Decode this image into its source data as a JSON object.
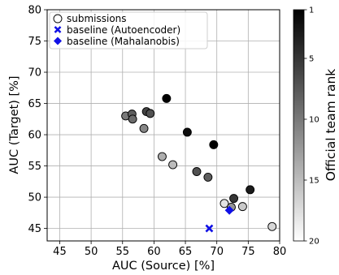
{
  "chart_data": {
    "type": "scatter",
    "xlabel": "AUC (Source) [%]",
    "ylabel": "AUC (Target) [%]",
    "xlim": [
      43,
      80
    ],
    "ylim": [
      43,
      80
    ],
    "xticks": [
      45,
      50,
      55,
      60,
      65,
      70,
      75,
      80
    ],
    "yticks": [
      45,
      50,
      55,
      60,
      65,
      70,
      75,
      80
    ],
    "grid": true,
    "legend_position": "top-left",
    "series": [
      {
        "name": "submissions",
        "marker": "circle",
        "points": [
          {
            "x": 55.5,
            "y": 63.0,
            "rank": 10
          },
          {
            "x": 56.5,
            "y": 63.3,
            "rank": 8
          },
          {
            "x": 56.6,
            "y": 62.5,
            "rank": 9
          },
          {
            "x": 58.4,
            "y": 61.0,
            "rank": 11
          },
          {
            "x": 58.8,
            "y": 63.7,
            "rank": 6
          },
          {
            "x": 59.4,
            "y": 63.4,
            "rank": 7
          },
          {
            "x": 62.0,
            "y": 65.8,
            "rank": 1
          },
          {
            "x": 61.3,
            "y": 56.5,
            "rank": 14
          },
          {
            "x": 63.0,
            "y": 55.2,
            "rank": 15
          },
          {
            "x": 65.3,
            "y": 60.4,
            "rank": 2
          },
          {
            "x": 69.5,
            "y": 58.4,
            "rank": 1
          },
          {
            "x": 66.8,
            "y": 54.1,
            "rank": 7
          },
          {
            "x": 68.6,
            "y": 53.2,
            "rank": 8
          },
          {
            "x": 71.2,
            "y": 49.0,
            "rank": 18
          },
          {
            "x": 72.7,
            "y": 49.8,
            "rank": 5
          },
          {
            "x": 72.3,
            "y": 48.4,
            "rank": 12
          },
          {
            "x": 74.1,
            "y": 48.5,
            "rank": 16
          },
          {
            "x": 75.3,
            "y": 51.2,
            "rank": 3
          },
          {
            "x": 78.8,
            "y": 45.3,
            "rank": 17
          }
        ]
      },
      {
        "name": "baseline (Autoencoder)",
        "marker": "x",
        "color": "#1010e6",
        "points": [
          {
            "x": 68.8,
            "y": 45.0
          }
        ]
      },
      {
        "name": "baseline (Mahalanobis)",
        "marker": "diamond",
        "color": "#1010e6",
        "points": [
          {
            "x": 72.0,
            "y": 47.9
          }
        ]
      }
    ],
    "colorbar": {
      "label": "Official team rank",
      "range": [
        1,
        20
      ],
      "ticks": [
        1,
        5,
        10,
        15,
        20
      ],
      "cmap": "gray",
      "low_color": "#000000",
      "high_color": "#ffffff"
    }
  }
}
